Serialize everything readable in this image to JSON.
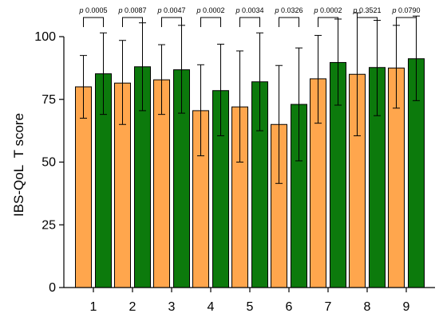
{
  "chart_data": {
    "type": "bar",
    "title": "",
    "xlabel": "",
    "ylabel": "IBS-QoL  T score",
    "ylim": [
      0,
      100
    ],
    "yticks": [
      0,
      25,
      50,
      75,
      100
    ],
    "grid": false,
    "categories": [
      "1",
      "2",
      "3",
      "4",
      "5",
      "6",
      "7",
      "8",
      "9"
    ],
    "series": [
      {
        "color": "#FFA64D",
        "values": [
          80,
          81.5,
          82.8,
          70.5,
          72,
          65,
          83.2,
          85,
          87.5
        ],
        "err_low": [
          67.5,
          65,
          69,
          52.5,
          50,
          41.5,
          65.5,
          60.5,
          71.5
        ],
        "err_high": [
          92.5,
          98.5,
          96.8,
          88.8,
          94.3,
          88.5,
          100.5,
          109.5,
          104.5
        ]
      },
      {
        "color": "#0C7A0C",
        "values": [
          85.2,
          88,
          86.8,
          78.5,
          82,
          73,
          89.7,
          87.7,
          91.2
        ],
        "err_low": [
          69,
          70.5,
          69.5,
          60.5,
          62.5,
          50.5,
          72.7,
          68.5,
          74.5
        ],
        "err_high": [
          101.5,
          105.5,
          104.5,
          97,
          101.5,
          95.5,
          107,
          106.5,
          108.2
        ]
      }
    ],
    "p_prefix": "p",
    "p_values": [
      "0.0005",
      "0.0087",
      "0.0047",
      "0.0002",
      "0.0034",
      "0.0326",
      "0.0002",
      "0.3521",
      "0.0790"
    ]
  }
}
